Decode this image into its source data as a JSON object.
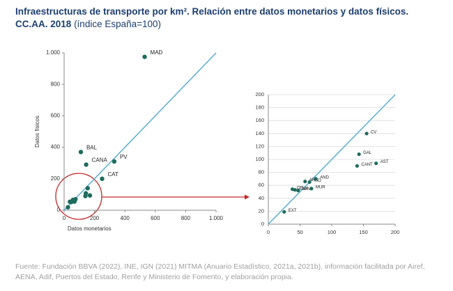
{
  "title": "Infraestructuras de transporte por km². Relación entre datos monetarios y datos físicos. CC.AA. 2018",
  "subtitle": "(índice España=100)",
  "source": "Fuente: Fundación BBVA (2022), INE, IGN (2021) MITMA (Anuario Estadístico, 2021a, 2021b), información facilitada por Airef, AENA, Adif, Puertos del Estado, Renfe y Ministerio de Fomento, y elaboración propia.",
  "chart_data": [
    {
      "type": "scatter",
      "xlabel": "Datos monetarios",
      "ylabel": "Datos físicos",
      "color": "#1f6b5e",
      "line_color": "#5aaed0",
      "diagonal": true,
      "grid": false,
      "xlim": [
        0,
        1000
      ],
      "ylim": [
        0,
        1000
      ],
      "xticks": [
        0,
        200,
        400,
        600,
        800,
        {
          "value": 1000,
          "label": "1.000"
        }
      ],
      "yticks": [
        0,
        200,
        400,
        600,
        800,
        {
          "value": 1000,
          "label": "1.000"
        }
      ],
      "x": [
        530,
        110,
        145,
        330,
        250,
        25,
        38,
        42,
        47,
        58,
        65,
        68,
        75,
        140,
        143,
        170,
        155
      ],
      "y": [
        975,
        370,
        290,
        310,
        200,
        19,
        54,
        53,
        52,
        66,
        65,
        55,
        70,
        90,
        108,
        94,
        140
      ],
      "labels": [
        "MAD",
        "BAL",
        "CANA",
        "PV",
        "CAT",
        null,
        null,
        null,
        null,
        null,
        null,
        null,
        null,
        null,
        null,
        null,
        null
      ]
    },
    {
      "type": "scatter",
      "color": "#1f6b5e",
      "line_color": "#5aaed0",
      "diagonal": true,
      "grid": true,
      "xlim": [
        0,
        200
      ],
      "ylim": [
        0,
        200
      ],
      "xticks": [
        0,
        50,
        100,
        150,
        200
      ],
      "yticks": [
        0,
        20,
        40,
        60,
        80,
        100,
        120,
        140,
        160,
        180,
        200
      ],
      "x": [
        25,
        38,
        42,
        47,
        58,
        65,
        68,
        75,
        140,
        143,
        170,
        155
      ],
      "y": [
        19,
        54,
        53,
        52,
        66,
        65,
        55,
        70,
        90,
        108,
        94,
        140
      ],
      "labels": [
        "EXT",
        "CYL",
        "CLM",
        "NAV",
        "ARA",
        "RIO",
        "MUR",
        "AND",
        "CANT",
        "GAL",
        "AST",
        "CV"
      ]
    }
  ]
}
